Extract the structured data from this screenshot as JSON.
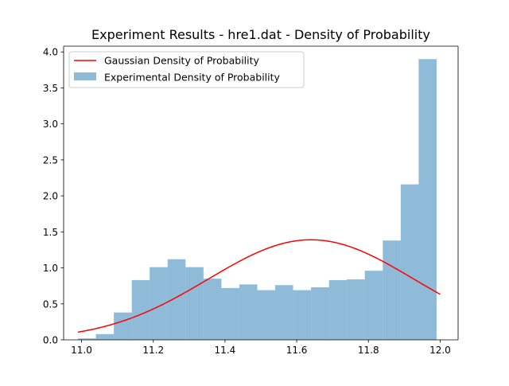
{
  "chart_data": {
    "type": "bar",
    "title": "Experiment Results - hre1.dat - Density of Probability",
    "xlabel": "",
    "ylabel": "",
    "xlim": [
      10.95,
      12.05
    ],
    "ylim": [
      0,
      4.08
    ],
    "x_ticks": [
      "11.0",
      "11.2",
      "11.4",
      "11.6",
      "11.8",
      "12.0"
    ],
    "x_tick_values": [
      11.0,
      11.2,
      11.4,
      11.6,
      11.8,
      12.0
    ],
    "y_ticks": [
      "0.0",
      "0.5",
      "1.0",
      "1.5",
      "2.0",
      "2.5",
      "3.0",
      "3.5",
      "4.0"
    ],
    "y_tick_values": [
      0.0,
      0.5,
      1.0,
      1.5,
      2.0,
      2.5,
      3.0,
      3.5,
      4.0
    ],
    "grid": false,
    "legend_position": "top-left",
    "histogram": {
      "name": "Experimental Density of Probability",
      "color": "#1f77b4",
      "alpha": 0.5,
      "bin_width": 0.05,
      "bin_edges": [
        10.99,
        11.04,
        11.09,
        11.14,
        11.19,
        11.24,
        11.29,
        11.34,
        11.39,
        11.44,
        11.49,
        11.54,
        11.59,
        11.64,
        11.69,
        11.74,
        11.79,
        11.84,
        11.89,
        11.94,
        11.99
      ],
      "values": [
        0.02,
        0.08,
        0.38,
        0.83,
        1.01,
        1.12,
        1.01,
        0.85,
        0.72,
        0.77,
        0.69,
        0.76,
        0.69,
        0.73,
        0.83,
        0.84,
        0.96,
        1.38,
        2.16,
        3.9
      ]
    },
    "gaussian": {
      "name": "Gaussian Density of Probability",
      "color": "#ff0000",
      "mean": 11.64,
      "std": 0.287,
      "x_range": [
        10.99,
        12.0
      ]
    }
  }
}
